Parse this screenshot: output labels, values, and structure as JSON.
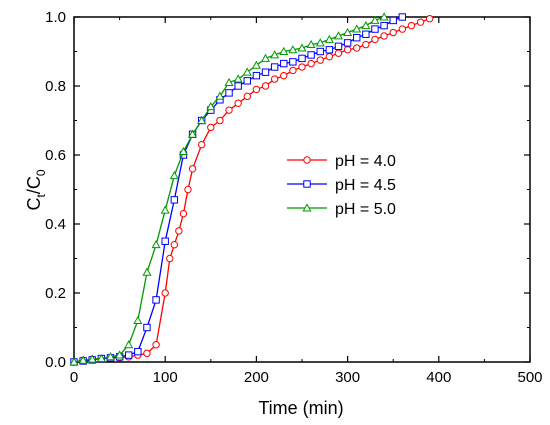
{
  "chart_data": {
    "type": "line",
    "xlabel": "Time (min)",
    "ylabel": {
      "main": "C",
      "sub1": "t",
      "sep": "/C",
      "sub2": "0"
    },
    "xlim": [
      0,
      500
    ],
    "ylim": [
      0,
      1.0
    ],
    "xticks": [
      "0",
      "100",
      "200",
      "300",
      "400",
      "500"
    ],
    "yticks": [
      "0.0",
      "0.2",
      "0.4",
      "0.6",
      "0.8",
      "1.0"
    ],
    "grid": false,
    "legend_position": "center-right",
    "series": [
      {
        "name": "pH = 4.0",
        "color": "#ff0000",
        "marker": "circle",
        "x": [
          0,
          10,
          20,
          30,
          40,
          50,
          60,
          70,
          80,
          90,
          100,
          105,
          110,
          115,
          120,
          125,
          130,
          140,
          150,
          160,
          170,
          180,
          190,
          200,
          210,
          220,
          230,
          240,
          250,
          260,
          270,
          280,
          290,
          300,
          310,
          320,
          330,
          340,
          350,
          360,
          370,
          380,
          390
        ],
        "y": [
          0.0,
          0.005,
          0.008,
          0.01,
          0.012,
          0.012,
          0.015,
          0.02,
          0.025,
          0.05,
          0.2,
          0.3,
          0.34,
          0.38,
          0.43,
          0.5,
          0.56,
          0.63,
          0.68,
          0.7,
          0.73,
          0.75,
          0.77,
          0.79,
          0.8,
          0.82,
          0.83,
          0.845,
          0.855,
          0.865,
          0.875,
          0.885,
          0.895,
          0.905,
          0.91,
          0.92,
          0.935,
          0.945,
          0.955,
          0.965,
          0.975,
          0.985,
          0.995
        ]
      },
      {
        "name": "pH = 4.5",
        "color": "#0000ff",
        "marker": "square",
        "x": [
          0,
          10,
          20,
          30,
          40,
          50,
          60,
          70,
          80,
          90,
          100,
          110,
          120,
          130,
          140,
          150,
          160,
          170,
          180,
          190,
          200,
          210,
          220,
          230,
          240,
          250,
          260,
          270,
          280,
          290,
          300,
          310,
          320,
          330,
          340,
          350,
          360
        ],
        "y": [
          0.0,
          0.003,
          0.006,
          0.01,
          0.012,
          0.015,
          0.02,
          0.03,
          0.1,
          0.18,
          0.35,
          0.47,
          0.6,
          0.66,
          0.7,
          0.73,
          0.76,
          0.78,
          0.8,
          0.815,
          0.83,
          0.84,
          0.855,
          0.865,
          0.87,
          0.88,
          0.89,
          0.9,
          0.905,
          0.915,
          0.925,
          0.94,
          0.95,
          0.965,
          0.975,
          0.99,
          1.0
        ]
      },
      {
        "name": "pH = 5.0",
        "color": "#009900",
        "marker": "triangle",
        "x": [
          0,
          10,
          20,
          30,
          40,
          50,
          60,
          70,
          80,
          90,
          100,
          110,
          120,
          130,
          140,
          150,
          160,
          170,
          180,
          190,
          200,
          210,
          220,
          230,
          240,
          250,
          260,
          270,
          280,
          290,
          300,
          310,
          320,
          330,
          340
        ],
        "y": [
          0.0,
          0.005,
          0.008,
          0.01,
          0.015,
          0.02,
          0.05,
          0.12,
          0.26,
          0.34,
          0.44,
          0.54,
          0.61,
          0.66,
          0.7,
          0.74,
          0.77,
          0.81,
          0.82,
          0.84,
          0.86,
          0.88,
          0.89,
          0.9,
          0.905,
          0.91,
          0.92,
          0.925,
          0.935,
          0.945,
          0.955,
          0.965,
          0.975,
          0.99,
          1.0
        ]
      }
    ]
  }
}
